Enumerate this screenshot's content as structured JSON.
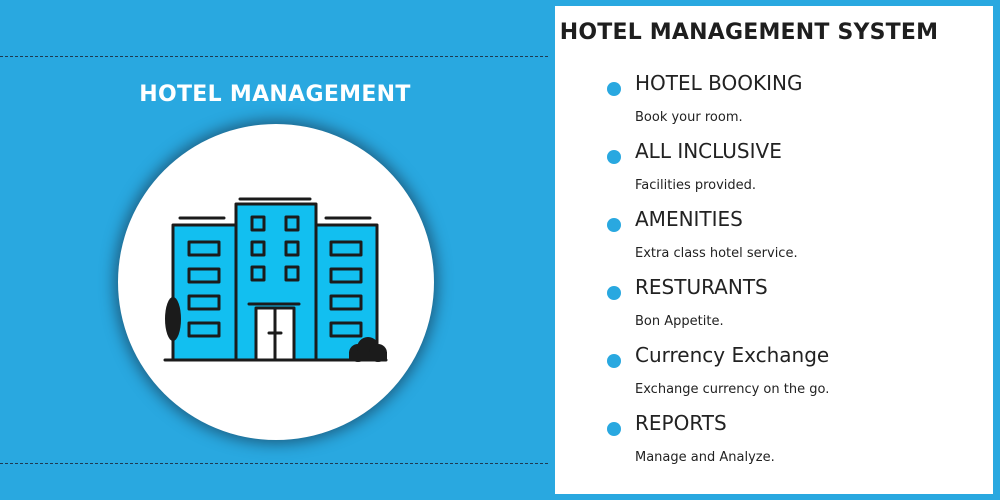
{
  "colors": {
    "background": "#29a8e0",
    "panel": "#ffffff",
    "bullet": "#29a8e0",
    "building_fill": "#12bff0",
    "outline": "#1b1b1b"
  },
  "left": {
    "title": "HOTEL MANAGEMENT",
    "illustration_icon": "hotel-building-icon"
  },
  "panel": {
    "title": "HOTEL MANAGEMENT SYSTEM",
    "items": [
      {
        "title": "HOTEL BOOKING",
        "description": "Book your room."
      },
      {
        "title": "ALL INCLUSIVE",
        "description": "Facilities provided."
      },
      {
        "title": "AMENITIES",
        "description": "Extra class hotel service."
      },
      {
        "title": "RESTURANTS",
        "description": "Bon Appetite."
      },
      {
        "title": "Currency Exchange",
        "description": "Exchange currency on the go."
      },
      {
        "title": "REPORTS",
        "description": "Manage and Analyze."
      }
    ]
  }
}
